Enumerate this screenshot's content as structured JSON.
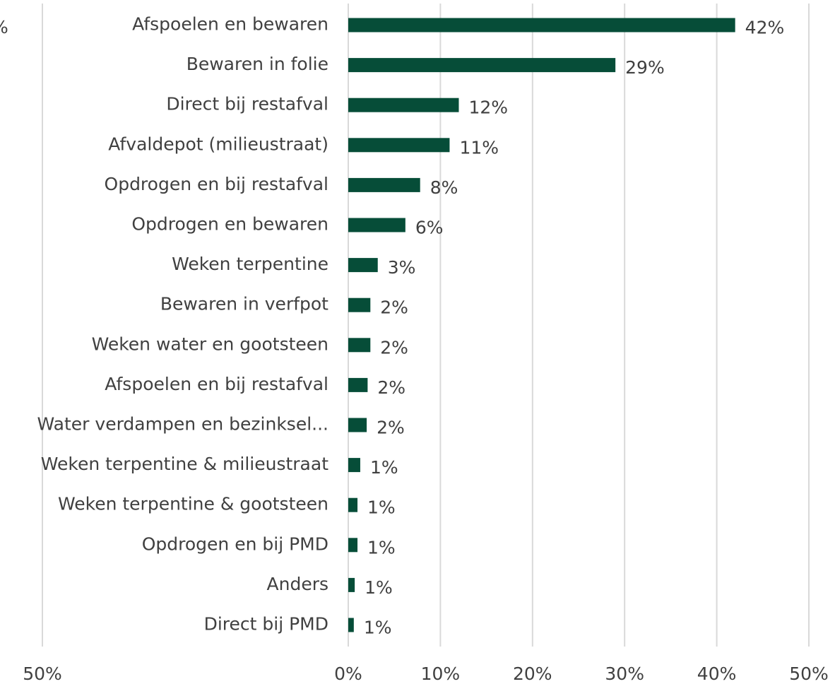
{
  "chart_data": {
    "type": "barh",
    "categories": [
      "Afspoelen en bewaren",
      "Bewaren in folie",
      "Direct bij restafval",
      "Afvaldepot (milieustraat)",
      "Opdrogen en bij restafval",
      "Opdrogen en bewaren",
      "Weken terpentine",
      "Bewaren in verfpot",
      "Weken water en gootsteen",
      "Afspoelen en bij restafval",
      "Water verdampen en bezinksel...",
      "Weken terpentine & milieustraat",
      "Weken terpentine & gootsteen",
      "Opdrogen en bij PMD",
      "Anders",
      "Direct bij PMD"
    ],
    "values": [
      42,
      29,
      12,
      11,
      7.8,
      6.2,
      3.2,
      2.4,
      2.4,
      2.1,
      2.0,
      1.3,
      1.0,
      1.0,
      0.7,
      0.6
    ],
    "value_labels": [
      "42%",
      "29%",
      "12%",
      "11%",
      "8%",
      "6%",
      "3%",
      "2%",
      "2%",
      "2%",
      "2%",
      "1%",
      "1%",
      "1%",
      "1%",
      "1%"
    ],
    "color": "#064d38",
    "xlim": [
      0,
      50
    ],
    "xticks": [
      {
        "value": 0,
        "label": "0%"
      },
      {
        "value": 10,
        "label": "10%"
      },
      {
        "value": 20,
        "label": "20%"
      },
      {
        "value": 30,
        "label": "30%"
      },
      {
        "value": 40,
        "label": "40%"
      },
      {
        "value": 50,
        "label": "50%"
      }
    ],
    "grid": true,
    "annotations": [
      "%",
      "50%"
    ]
  }
}
